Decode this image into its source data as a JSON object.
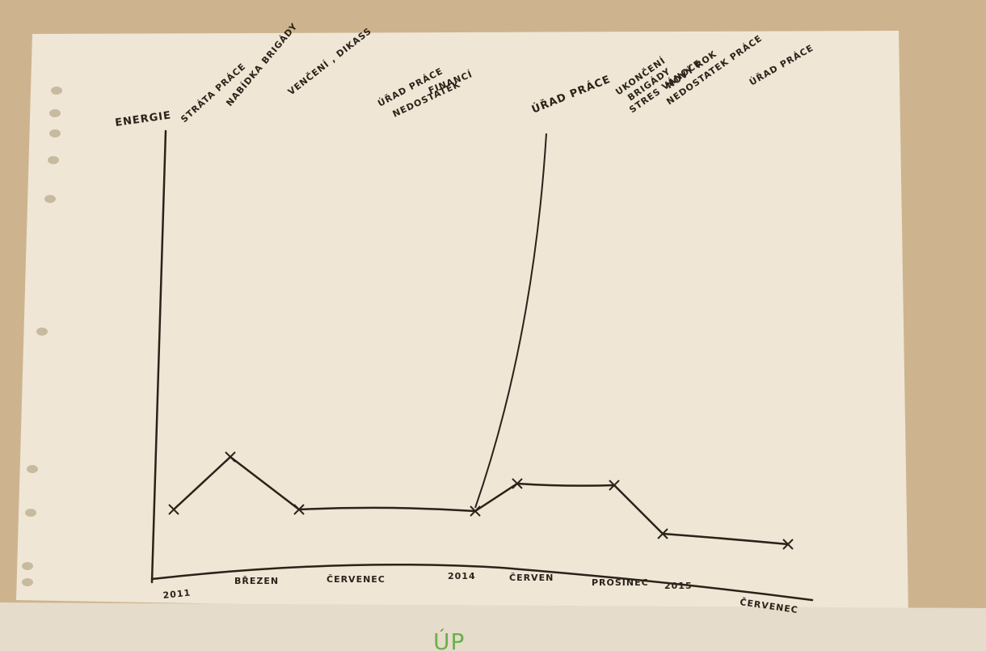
{
  "photo": {
    "colors": {
      "wall": "#cdb48e",
      "paper": "#efe6d6",
      "ink": "#2b2219",
      "marker_green": "#6ab04c"
    },
    "y_axis_label": "ENERGIE",
    "events": [
      "STRÁTA PRÁCE",
      "NABÍDKA BRIGÁDY",
      "VENČENÍ , DIKASS",
      "ÚŘAD PRÁCE",
      "NEDOSTATEK",
      "FINANCÍ",
      "ÚŘAD PRÁCE",
      "UKONČENÍ",
      "BRIGÁDY",
      "STRES VÁNOCE",
      "NOVÝ ROK",
      "NEDOSTATEK PRÁCE",
      "ÚŘAD PRÁCE"
    ],
    "timeline": [
      "2011",
      "BŘEZEN",
      "ČERVENEC",
      "2014",
      "ČERVEN",
      "PROSINEC",
      "2015",
      "ČERVENEC"
    ],
    "green_text": "ÚP"
  }
}
